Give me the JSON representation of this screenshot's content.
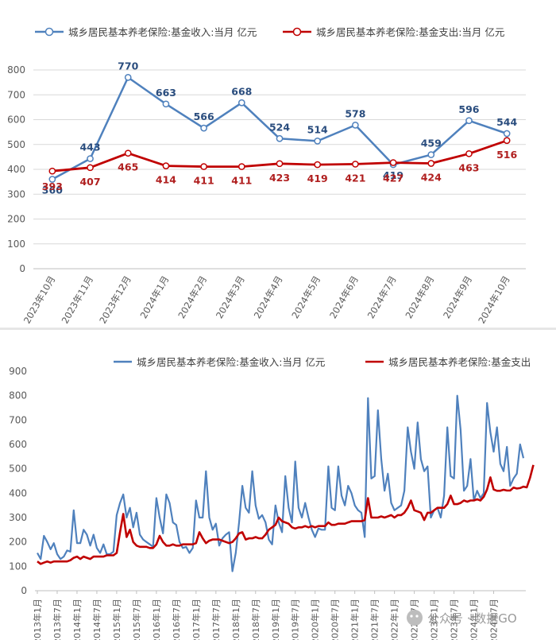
{
  "chart_data": [
    {
      "type": "line",
      "title": "",
      "xlabel": "",
      "ylabel": "",
      "ylim": [
        0,
        800
      ],
      "yticks": [
        "0",
        "100",
        "200",
        "300",
        "400",
        "500",
        "600",
        "700",
        "800"
      ],
      "grid": "horizontal",
      "legend_position": "top",
      "categories": [
        "2023年10月",
        "2023年11月",
        "2023年12月",
        "2024年1月",
        "2024年2月",
        "2024年3月",
        "2024年4月",
        "2024年5月",
        "2024年6月",
        "2024年7月",
        "2024年8月",
        "2024年9月",
        "2024年10月"
      ],
      "series": [
        {
          "name": "城乡居民基本养老保险:基金收入:当月 亿元",
          "color": "#4f81bd",
          "values": [
            360,
            443,
            770,
            663,
            566,
            668,
            524,
            514,
            578,
            419,
            459,
            596,
            544
          ]
        },
        {
          "name": "城乡居民基本养老保险:基金支出:当月 亿元",
          "color": "#c00000",
          "values": [
            393,
            407,
            465,
            414,
            411,
            411,
            423,
            419,
            421,
            427,
            424,
            463,
            516
          ]
        }
      ]
    },
    {
      "type": "line",
      "title": "",
      "xlabel": "",
      "ylabel": "",
      "ylim": [
        0,
        900
      ],
      "yticks": [
        "0",
        "100",
        "200",
        "300",
        "400",
        "500",
        "600",
        "700",
        "800",
        "900"
      ],
      "grid": "none",
      "legend_position": "top",
      "tick_labels": [
        "2013年1月",
        "2013年7月",
        "2014年1月",
        "2014年7月",
        "2015年1月",
        "2015年7月",
        "2016年1月",
        "2016年7月",
        "2017年1月",
        "2017年7月",
        "2018年1月",
        "2018年7月",
        "2019年1月",
        "2019年7月",
        "2020年1月",
        "2020年7月",
        "2021年1月",
        "2021年7月",
        "2022年1月",
        "2022年7月",
        "2023年1月",
        "2023年7月",
        "2024年1月",
        "2024年7月"
      ],
      "series": [
        {
          "name": "城乡居民基本养老保险:基金收入:当月 亿元",
          "color": "#4f81bd",
          "values": [
            155,
            130,
            225,
            200,
            170,
            195,
            150,
            130,
            140,
            165,
            160,
            330,
            195,
            195,
            250,
            230,
            185,
            230,
            175,
            155,
            190,
            150,
            150,
            160,
            310,
            360,
            395,
            300,
            340,
            260,
            320,
            230,
            210,
            200,
            190,
            180,
            380,
            300,
            235,
            395,
            360,
            280,
            270,
            200,
            175,
            180,
            155,
            175,
            370,
            300,
            300,
            490,
            300,
            250,
            275,
            185,
            215,
            230,
            240,
            80,
            155,
            280,
            430,
            340,
            320,
            490,
            350,
            295,
            310,
            280,
            210,
            190,
            350,
            280,
            240,
            470,
            340,
            280,
            530,
            340,
            300,
            360,
            300,
            250,
            220,
            255,
            250,
            250,
            510,
            340,
            330,
            510,
            390,
            350,
            430,
            400,
            350,
            330,
            320,
            220,
            790,
            460,
            470,
            740,
            540,
            410,
            480,
            360,
            330,
            340,
            350,
            410,
            670,
            570,
            500,
            690,
            540,
            490,
            510,
            300,
            330,
            340,
            300,
            390,
            670,
            470,
            460,
            800,
            660,
            410,
            430,
            540,
            370,
            410,
            380,
            400,
            770,
            650,
            570,
            670,
            520,
            490,
            590,
            430,
            460,
            480,
            600,
            544
          ]
        },
        {
          "name": "城乡居民基本养老保险:基金支出",
          "color": "#c00000",
          "values": [
            120,
            110,
            115,
            120,
            115,
            120,
            120,
            120,
            120,
            120,
            125,
            135,
            140,
            130,
            140,
            135,
            130,
            140,
            140,
            140,
            140,
            145,
            145,
            145,
            155,
            240,
            315,
            220,
            250,
            200,
            185,
            180,
            180,
            180,
            175,
            175,
            190,
            225,
            200,
            185,
            185,
            190,
            185,
            185,
            190,
            190,
            190,
            190,
            195,
            240,
            215,
            195,
            205,
            210,
            210,
            210,
            205,
            200,
            195,
            200,
            215,
            235,
            240,
            210,
            215,
            215,
            220,
            215,
            215,
            230,
            250,
            260,
            270,
            300,
            285,
            280,
            275,
            260,
            255,
            260,
            260,
            265,
            260,
            265,
            260,
            265,
            265,
            265,
            280,
            270,
            270,
            275,
            275,
            275,
            280,
            285,
            285,
            285,
            285,
            290,
            380,
            300,
            300,
            300,
            305,
            300,
            305,
            310,
            300,
            310,
            310,
            320,
            340,
            370,
            330,
            325,
            320,
            290,
            320,
            320,
            330,
            340,
            340,
            340,
            355,
            390,
            355,
            355,
            360,
            370,
            365,
            370,
            370,
            375,
            370,
            385,
            415,
            465,
            415,
            410,
            410,
            414,
            411,
            411,
            423,
            419,
            421,
            427,
            424,
            463,
            516
          ]
        }
      ],
      "watermark_text": "公众号 · 数据GO"
    }
  ]
}
